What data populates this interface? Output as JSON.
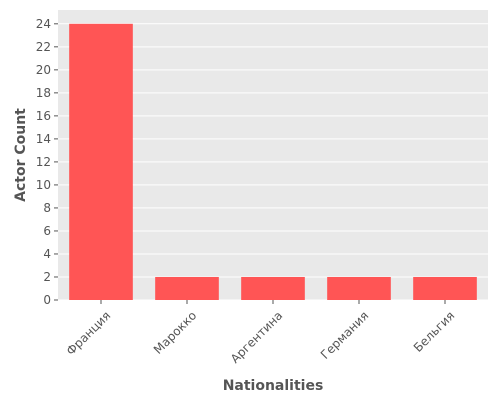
{
  "chart_data": {
    "type": "bar",
    "title": "",
    "xlabel": "Nationalities",
    "ylabel": "Actor Count",
    "categories": [
      "Франция",
      "Марокко",
      "Аргентина",
      "Германия",
      "Бельгия"
    ],
    "values": [
      24,
      2,
      2,
      2,
      2
    ],
    "ylim": [
      0,
      25.2
    ],
    "yticks": [
      0,
      2,
      4,
      6,
      8,
      10,
      12,
      14,
      16,
      18,
      20,
      22,
      24
    ],
    "grid": true,
    "legend": "none",
    "bar_color": "#ff5555",
    "panel_color": "#e9e9e9",
    "grid_color": "#ffffff",
    "text_color": "#555555"
  }
}
